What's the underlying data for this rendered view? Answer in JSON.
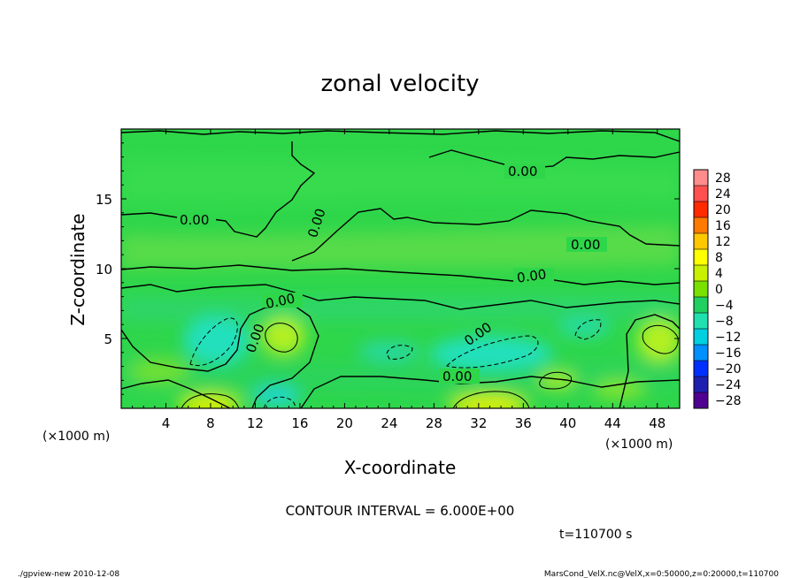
{
  "chart_data": {
    "type": "heatmap",
    "title": "zonal velocity",
    "xlabel": "X-coordinate",
    "ylabel": "Z-coordinate",
    "x_unit": "(×1000 m)",
    "y_unit": "(×1000 m)",
    "xlim": [
      0,
      50
    ],
    "ylim": [
      0,
      20
    ],
    "x_ticks": [
      "4",
      "8",
      "12",
      "16",
      "20",
      "24",
      "28",
      "32",
      "36",
      "40",
      "44",
      "48"
    ],
    "x_tick_values": [
      4,
      8,
      12,
      16,
      20,
      24,
      28,
      32,
      36,
      40,
      44,
      48
    ],
    "y_ticks": [
      "5",
      "10",
      "15"
    ],
    "y_tick_values": [
      5,
      10,
      15
    ],
    "colorbar_levels": [
      "28",
      "24",
      "20",
      "16",
      "12",
      "8",
      "4",
      "0",
      "-4",
      "-8",
      "-12",
      "-16",
      "-20",
      "-24",
      "-28"
    ],
    "colorbar_colors": [
      "#ff8c8c",
      "#ff5050",
      "#ff2a00",
      "#ff7a00",
      "#ffc800",
      "#ffff00",
      "#c8f000",
      "#7ae000",
      "#20d060",
      "#20e0b0",
      "#00d0e0",
      "#0090ff",
      "#0030ff",
      "#2020b0",
      "#500090"
    ],
    "contour_labels": [
      "0.00",
      "0.00",
      "0.00",
      "0.00",
      "0.00",
      "0.00",
      "0.00",
      "0.00",
      "0.00"
    ],
    "contour_interval": "CONTOUR INTERVAL = 6.000E+00",
    "time_label": "t=110700 s",
    "grid": false,
    "features": [
      {
        "name": "negative-cell",
        "x": 8.5,
        "z": 5.5,
        "value": -8
      },
      {
        "name": "negative-cell",
        "x": 35,
        "z": 5,
        "value": -8
      },
      {
        "name": "negative-cell",
        "x": 42,
        "z": 6,
        "value": -5
      },
      {
        "name": "positive-cell",
        "x": 15,
        "z": 6,
        "value": 6
      },
      {
        "name": "positive-cell",
        "x": 48,
        "z": 5.5,
        "value": 6
      },
      {
        "name": "positive-cell",
        "x": 8,
        "z": 0.5,
        "value": 7
      },
      {
        "name": "positive-cell",
        "x": 33,
        "z": 0.5,
        "value": 7
      }
    ]
  },
  "footer": {
    "left": "./gpview-new  2010-12-08",
    "right": "MarsCond_VelX.nc@VelX,x=0:50000,z=0:20000,t=110700"
  }
}
